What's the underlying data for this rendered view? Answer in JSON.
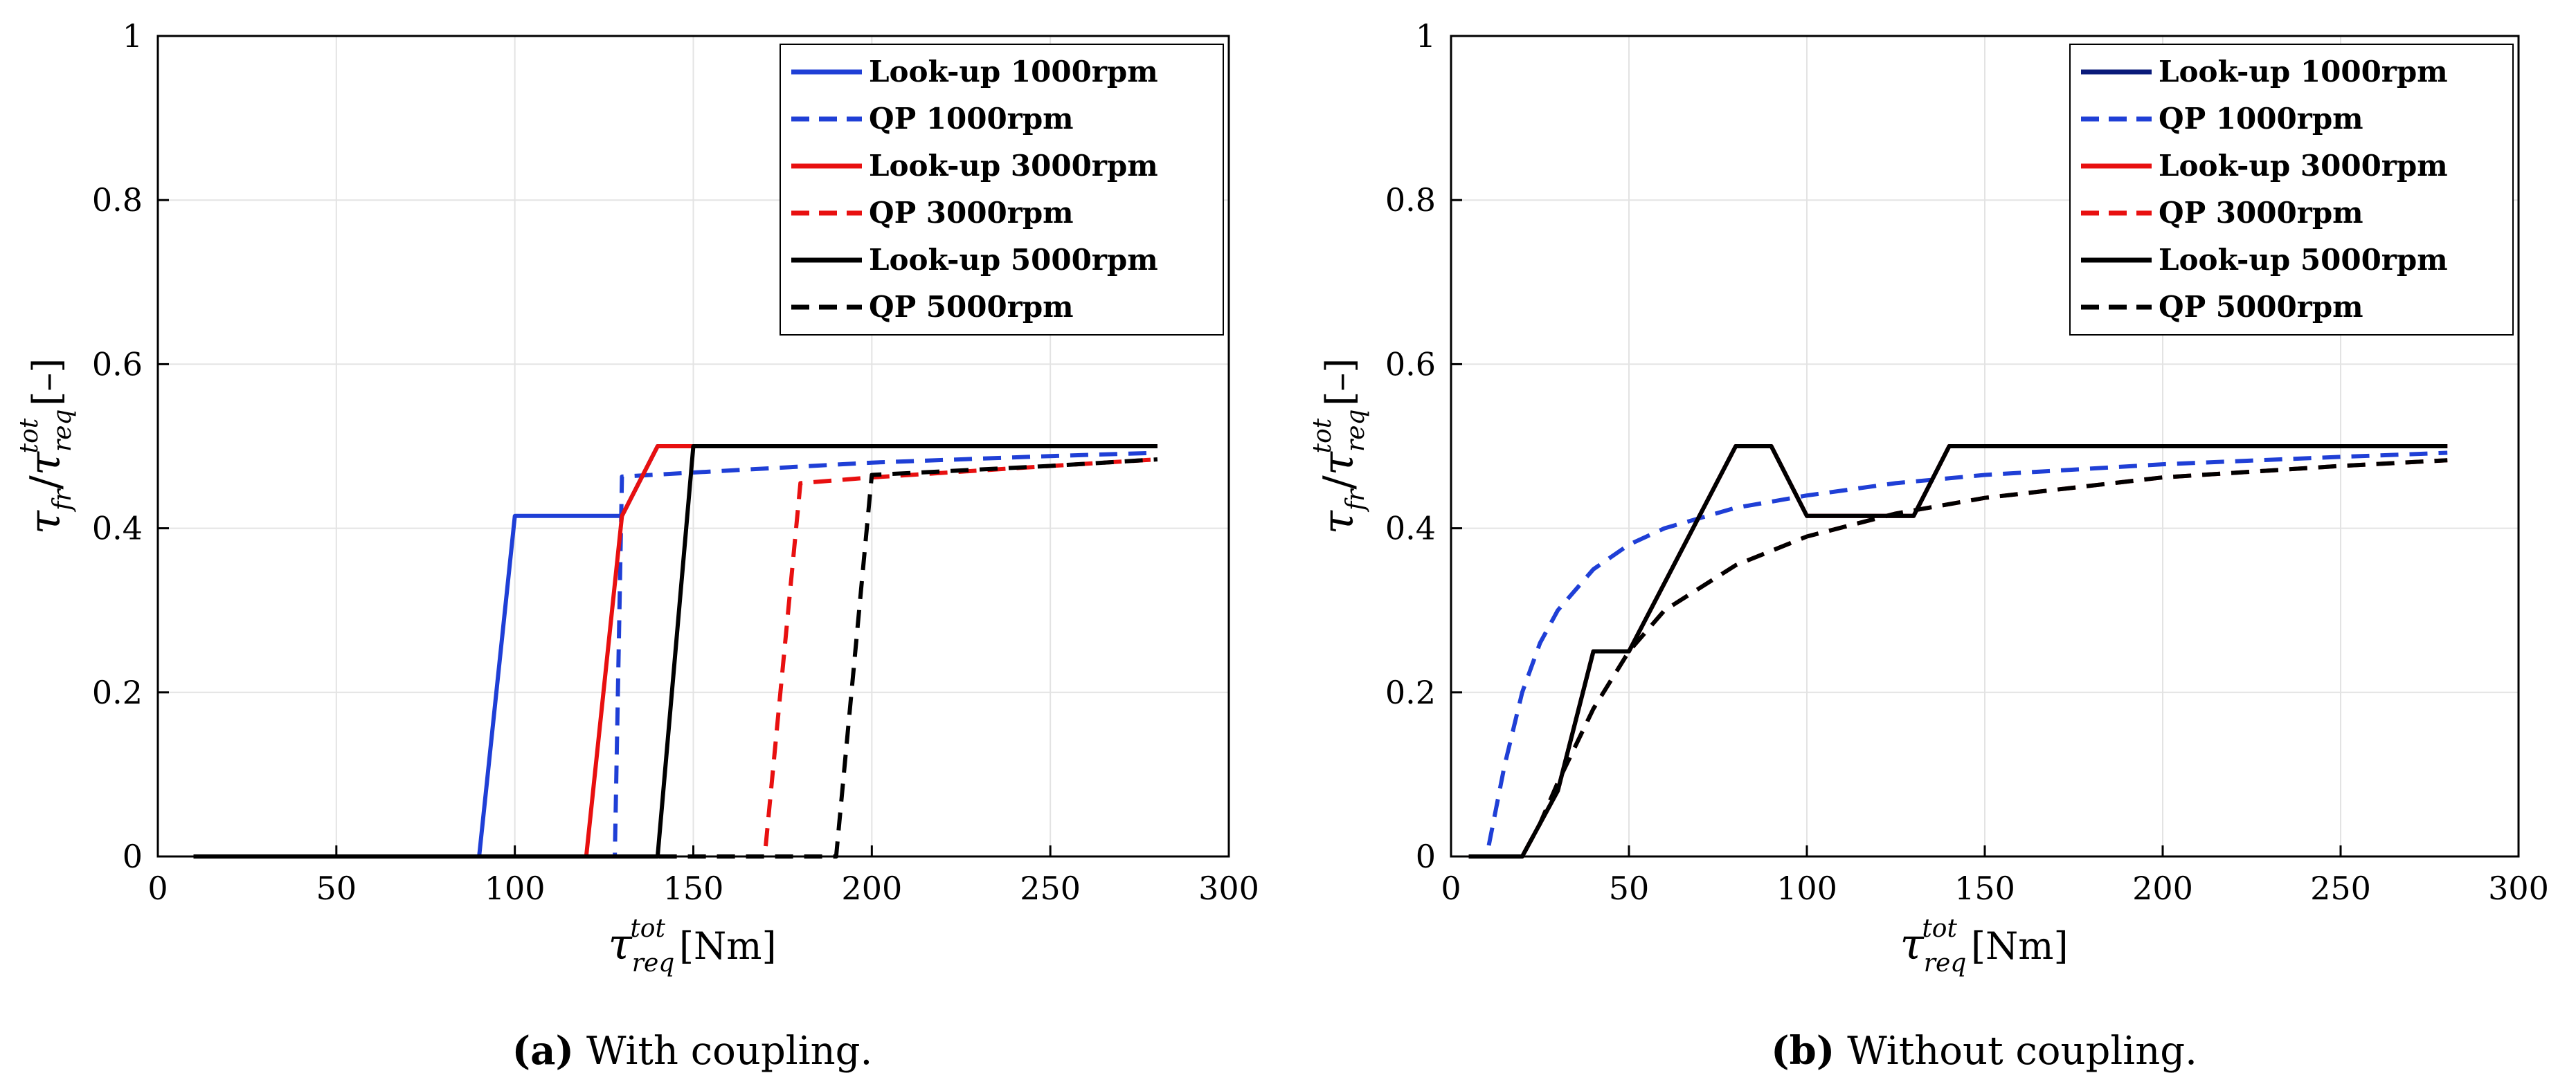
{
  "chart_data": [
    {
      "id": "a",
      "type": "line",
      "caption_label": "(a)",
      "caption_text": "With coupling.",
      "xlabel_unit": "[Nm]",
      "ylabel_bracket": "[–]",
      "xlim": [
        0,
        300
      ],
      "ylim": [
        0,
        1
      ],
      "xticks": [
        "0",
        "50",
        "100",
        "150",
        "200",
        "250",
        "300"
      ],
      "yticks": [
        "0",
        "0.2",
        "0.4",
        "0.6",
        "0.8",
        "1"
      ],
      "grid": true,
      "legend_position": "top-right",
      "series": [
        {
          "name": "Look-up 1000rpm",
          "color": "#1f3fd6",
          "dashed": false,
          "x": [
            10,
            90,
            100,
            130,
            140,
            280
          ],
          "y": [
            0,
            0,
            0.415,
            0.415,
            0.5,
            0.5
          ]
        },
        {
          "name": "QP 1000rpm",
          "color": "#1f3fd6",
          "dashed": true,
          "x": [
            10,
            128,
            130,
            150,
            200,
            250,
            280
          ],
          "y": [
            0,
            0,
            0.463,
            0.468,
            0.48,
            0.488,
            0.492
          ]
        },
        {
          "name": "Look-up 3000rpm",
          "color": "#e81010",
          "dashed": false,
          "x": [
            10,
            120,
            130,
            140,
            280
          ],
          "y": [
            0,
            0,
            0.415,
            0.5,
            0.5
          ]
        },
        {
          "name": "QP 3000rpm",
          "color": "#e81010",
          "dashed": true,
          "x": [
            10,
            170,
            180,
            200,
            250,
            280
          ],
          "y": [
            0,
            0,
            0.455,
            0.462,
            0.476,
            0.484
          ]
        },
        {
          "name": "Look-up 5000rpm",
          "color": "#000000",
          "dashed": false,
          "x": [
            10,
            140,
            150,
            280
          ],
          "y": [
            0,
            0,
            0.5,
            0.5
          ]
        },
        {
          "name": "QP 5000rpm",
          "color": "#000000",
          "dashed": true,
          "x": [
            10,
            190,
            200,
            250,
            280
          ],
          "y": [
            0,
            0,
            0.465,
            0.476,
            0.484
          ]
        }
      ]
    },
    {
      "id": "b",
      "type": "line",
      "caption_label": "(b)",
      "caption_text": "Without coupling.",
      "xlabel_unit": "[Nm]",
      "ylabel_bracket": "[–]",
      "xlim": [
        0,
        300
      ],
      "ylim": [
        0,
        1
      ],
      "xticks": [
        "0",
        "50",
        "100",
        "150",
        "200",
        "250",
        "300"
      ],
      "yticks": [
        "0",
        "0.2",
        "0.4",
        "0.6",
        "0.8",
        "1"
      ],
      "grid": true,
      "legend_position": "top-right",
      "series": [
        {
          "name": "Look-up 1000rpm",
          "color": "#0a1a7a",
          "dashed": false,
          "x": [
            5,
            20,
            30,
            40,
            50,
            80,
            90,
            100,
            130,
            140,
            280
          ],
          "y": [
            0,
            0,
            0.08,
            0.25,
            0.25,
            0.5,
            0.5,
            0.415,
            0.415,
            0.5,
            0.5
          ]
        },
        {
          "name": "QP 1000rpm",
          "color": "#1f3fd6",
          "dashed": true,
          "x": [
            5,
            10,
            15,
            20,
            25,
            30,
            40,
            50,
            60,
            80,
            100,
            125,
            150,
            200,
            250,
            280
          ],
          "y": [
            0,
            0,
            0.11,
            0.2,
            0.26,
            0.3,
            0.35,
            0.38,
            0.4,
            0.425,
            0.44,
            0.455,
            0.465,
            0.478,
            0.487,
            0.492
          ]
        },
        {
          "name": "Look-up 3000rpm",
          "color": "#e81010",
          "dashed": false,
          "x": [
            5,
            20,
            30,
            40,
            50,
            80,
            90,
            100,
            130,
            140,
            280
          ],
          "y": [
            0,
            0,
            0.08,
            0.25,
            0.25,
            0.5,
            0.5,
            0.415,
            0.415,
            0.5,
            0.5
          ]
        },
        {
          "name": "QP 3000rpm",
          "color": "#e81010",
          "dashed": true,
          "x": [
            5,
            20,
            25,
            30,
            40,
            50,
            60,
            80,
            100,
            125,
            150,
            200,
            250,
            280
          ],
          "y": [
            0,
            0,
            0.04,
            0.09,
            0.18,
            0.25,
            0.3,
            0.355,
            0.39,
            0.418,
            0.437,
            0.462,
            0.476,
            0.483
          ]
        },
        {
          "name": "Look-up 5000rpm",
          "color": "#000000",
          "dashed": false,
          "x": [
            5,
            20,
            30,
            40,
            50,
            80,
            90,
            100,
            130,
            140,
            280
          ],
          "y": [
            0,
            0,
            0.08,
            0.25,
            0.25,
            0.5,
            0.5,
            0.415,
            0.415,
            0.5,
            0.5
          ]
        },
        {
          "name": "QP 5000rpm",
          "color": "#000000",
          "dashed": true,
          "x": [
            5,
            20,
            25,
            30,
            40,
            50,
            60,
            80,
            100,
            125,
            150,
            200,
            250,
            280
          ],
          "y": [
            0,
            0,
            0.04,
            0.09,
            0.18,
            0.25,
            0.3,
            0.355,
            0.39,
            0.418,
            0.437,
            0.462,
            0.476,
            0.483
          ]
        }
      ]
    }
  ]
}
